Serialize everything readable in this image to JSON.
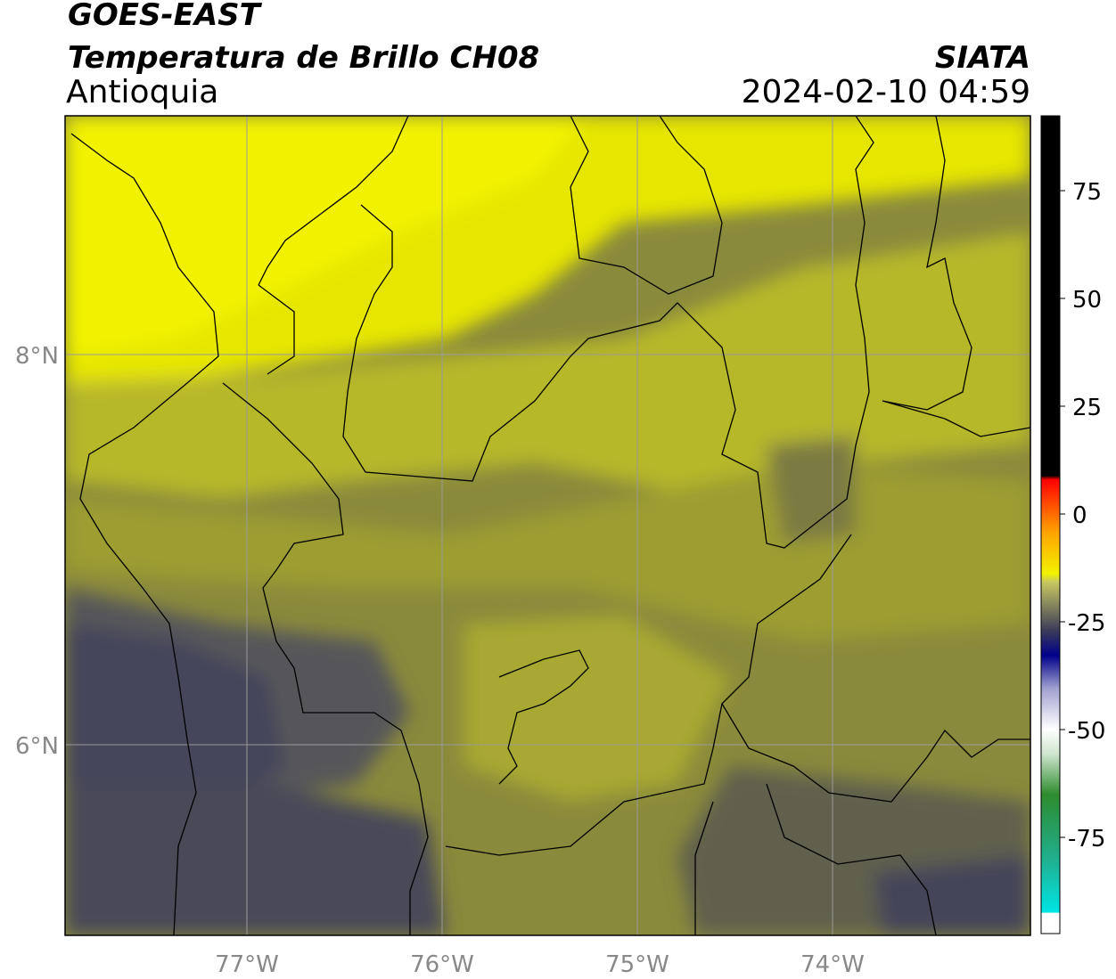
{
  "header": {
    "satellite": "GOES-EAST",
    "product": "Temperatura de Brillo CH08",
    "region": "Antioquia",
    "organization": "SIATA",
    "datetime": "2024-02-10 04:59"
  },
  "map": {
    "lon_ticks": [
      "77°W",
      "76°W",
      "75°W",
      "74°W"
    ],
    "lat_ticks": [
      "8°N",
      "6°N"
    ],
    "grid": true
  },
  "colorbar": {
    "ticks": [
      "75",
      "50",
      "25",
      "0",
      "-25",
      "-50",
      "-75"
    ],
    "colors": [
      "#000000",
      "#ff0000",
      "#ffa500",
      "#f2f200",
      "#3a3a5a",
      "#00008b",
      "#ffffff",
      "#2e8b2e",
      "#00e5e5"
    ]
  },
  "palette": {
    "warm_surface": "#f2f200",
    "mid": "#9a9a30",
    "cold_cloud": "#3c3c58"
  }
}
